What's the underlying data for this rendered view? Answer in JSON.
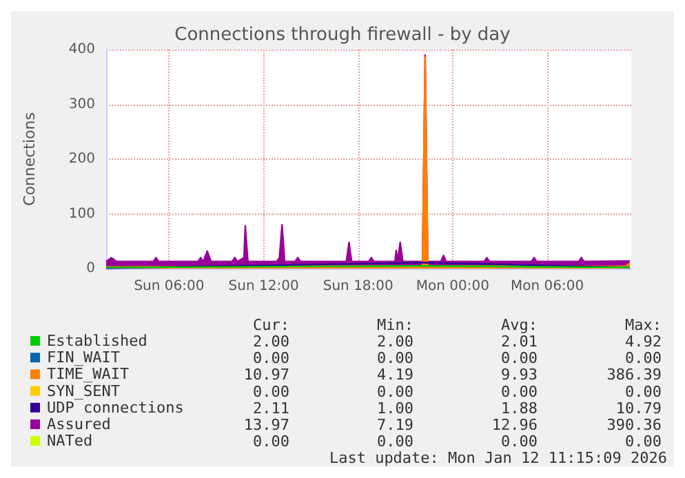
{
  "chart_data": {
    "type": "area",
    "title": "Connections through firewall - by day",
    "ylabel": "Connections",
    "xlim": [
      "2026-01-11T02:00",
      "2026-01-12T11:20"
    ],
    "xticks": [
      {
        "value": "2026-01-11T06:00",
        "label": "Sun 06:00"
      },
      {
        "value": "2026-01-11T12:00",
        "label": "Sun 12:00"
      },
      {
        "value": "2026-01-11T18:00",
        "label": "Sun 18:00"
      },
      {
        "value": "2026-01-12T00:00",
        "label": "Mon 00:00"
      },
      {
        "value": "2026-01-12T06:00",
        "label": "Mon 06:00"
      }
    ],
    "ylim": [
      0,
      400
    ],
    "yticks": [
      0,
      100,
      200,
      300,
      400
    ],
    "grid": true,
    "legend": "bottom left",
    "series": [
      {
        "name": "Established",
        "type": "line",
        "color": "#00cc00",
        "x": [
          "2026-01-11T02:00",
          "2026-01-11T22:15",
          "2026-01-12T11:15"
        ],
        "values": [
          2,
          5,
          2
        ]
      },
      {
        "name": "FIN_WAIT",
        "type": "line",
        "color": "#0066b3"
      },
      {
        "name": "TIME_WAIT",
        "color": "#ff8000",
        "x": [
          "2026-01-11T02:00",
          "2026-01-11T22:05",
          "2026-01-11T22:15",
          "2026-01-11T22:25",
          "2026-01-12T11:00",
          "2026-01-12T11:15"
        ],
        "values": [
          3,
          5,
          386,
          5,
          4,
          11
        ]
      },
      {
        "name": "SYN_SENT",
        "type": "line",
        "color": "#ffcc00"
      },
      {
        "name": "UDP connections",
        "type": "line",
        "color": "#330099",
        "x": [
          "2026-01-11T02:00",
          "2026-01-11T22:15",
          "2026-01-12T11:15"
        ],
        "values": [
          1,
          11,
          2
        ]
      },
      {
        "name": "Assured",
        "color": "#990099",
        "x": [
          "2026-01-11T02:00",
          "2026-01-11T02:20",
          "2026-01-11T02:40",
          "2026-01-11T05:00",
          "2026-01-11T05:10",
          "2026-01-11T05:20",
          "2026-01-11T07:50",
          "2026-01-11T08:00",
          "2026-01-11T08:10",
          "2026-01-11T08:25",
          "2026-01-11T08:40",
          "2026-01-11T10:00",
          "2026-01-11T10:10",
          "2026-01-11T10:20",
          "2026-01-11T10:45",
          "2026-01-11T10:50",
          "2026-01-11T11:00",
          "2026-01-11T12:50",
          "2026-01-11T13:00",
          "2026-01-11T13:10",
          "2026-01-11T13:20",
          "2026-01-11T14:00",
          "2026-01-11T14:10",
          "2026-01-11T14:20",
          "2026-01-11T17:15",
          "2026-01-11T17:25",
          "2026-01-11T17:35",
          "2026-01-11T18:40",
          "2026-01-11T18:50",
          "2026-01-11T19:00",
          "2026-01-11T20:20",
          "2026-01-11T20:25",
          "2026-01-11T20:30",
          "2026-01-11T20:40",
          "2026-01-11T20:50",
          "2026-01-11T22:05",
          "2026-01-11T22:15",
          "2026-01-11T22:25",
          "2026-01-11T23:15",
          "2026-01-11T23:25",
          "2026-01-11T23:35",
          "2026-01-12T02:00",
          "2026-01-12T02:10",
          "2026-01-12T02:20",
          "2026-01-12T05:00",
          "2026-01-12T05:10",
          "2026-01-12T05:20",
          "2026-01-12T08:00",
          "2026-01-12T08:10",
          "2026-01-12T08:20",
          "2026-01-12T11:15"
        ],
        "values": [
          13,
          20,
          13,
          13,
          20,
          13,
          13,
          20,
          13,
          32,
          13,
          13,
          20,
          13,
          20,
          78,
          13,
          13,
          20,
          80,
          13,
          13,
          20,
          13,
          13,
          48,
          13,
          13,
          20,
          13,
          13,
          33,
          13,
          48,
          13,
          13,
          390,
          13,
          13,
          24,
          13,
          13,
          20,
          13,
          13,
          20,
          13,
          13,
          20,
          13,
          14
        ]
      },
      {
        "name": "NATed",
        "type": "line",
        "color": "#ccff00"
      }
    ],
    "annotations": [
      "Cur:",
      "Min:",
      "Avg:",
      "Max:",
      "2.00",
      "2.00",
      "2.01",
      "4.92",
      "0.00",
      "0.00",
      "0.00",
      "0.00",
      "10.97",
      "4.19",
      "9.93",
      "386.39",
      "0.00",
      "0.00",
      "0.00",
      "0.00",
      "2.11",
      "1.00",
      "1.88",
      "10.79",
      "13.97",
      "7.19",
      "12.96",
      "390.36",
      "0.00",
      "0.00",
      "0.00",
      "0.00",
      "Last update: Mon Jan 12 11:15:09 2026"
    ]
  }
}
